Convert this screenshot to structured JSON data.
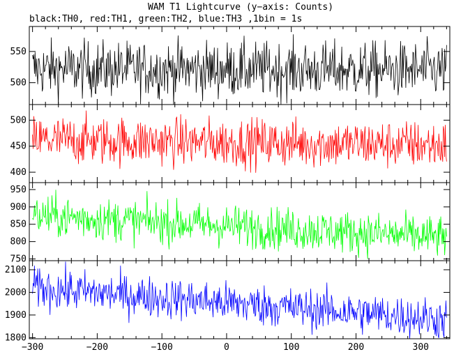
{
  "chart_data": {
    "type": "line",
    "title": "WAM T1 Lightcurve (y−axis: Counts)",
    "subtitle": "black:TH0, red:TH1, green:TH2, blue:TH3 ,1bin = 1s",
    "x_range": [
      -305,
      345
    ],
    "x_ticks": [
      -300,
      -200,
      -100,
      0,
      100,
      200,
      300
    ],
    "x_tick_labels": [
      "−300",
      "−200",
      "−100",
      "0",
      "100",
      "200",
      "300"
    ],
    "bin_seconds": 1,
    "panels": [
      {
        "name": "TH0",
        "color": "#000000",
        "ylim": [
          465,
          590
        ],
        "yticks": [
          500,
          550
        ],
        "ytick_labels": [
          "500",
          "550"
        ],
        "trend_start": 522,
        "trend_end": 520,
        "spread": 22
      },
      {
        "name": "TH1",
        "color": "#ff0000",
        "ylim": [
          380,
          530
        ],
        "yticks": [
          400,
          450,
          500
        ],
        "ytick_labels": [
          "400",
          "450",
          "500"
        ],
        "trend_start": 462,
        "trend_end": 452,
        "spread": 23
      },
      {
        "name": "TH2",
        "color": "#00ff00",
        "ylim": [
          745,
          970
        ],
        "yticks": [
          750,
          800,
          850,
          900,
          950
        ],
        "ytick_labels": [
          "750",
          "800",
          "850",
          "900",
          "950"
        ],
        "trend_start": 875,
        "trend_end": 812,
        "spread": 30
      },
      {
        "name": "TH3",
        "color": "#0000ff",
        "ylim": [
          1795,
          2140
        ],
        "yticks": [
          1800,
          1900,
          2000,
          2100
        ],
        "ytick_labels": [
          "1800",
          "1900",
          "2000",
          "2100"
        ],
        "trend_start": 2020,
        "trend_end": 1880,
        "spread": 45
      }
    ]
  }
}
